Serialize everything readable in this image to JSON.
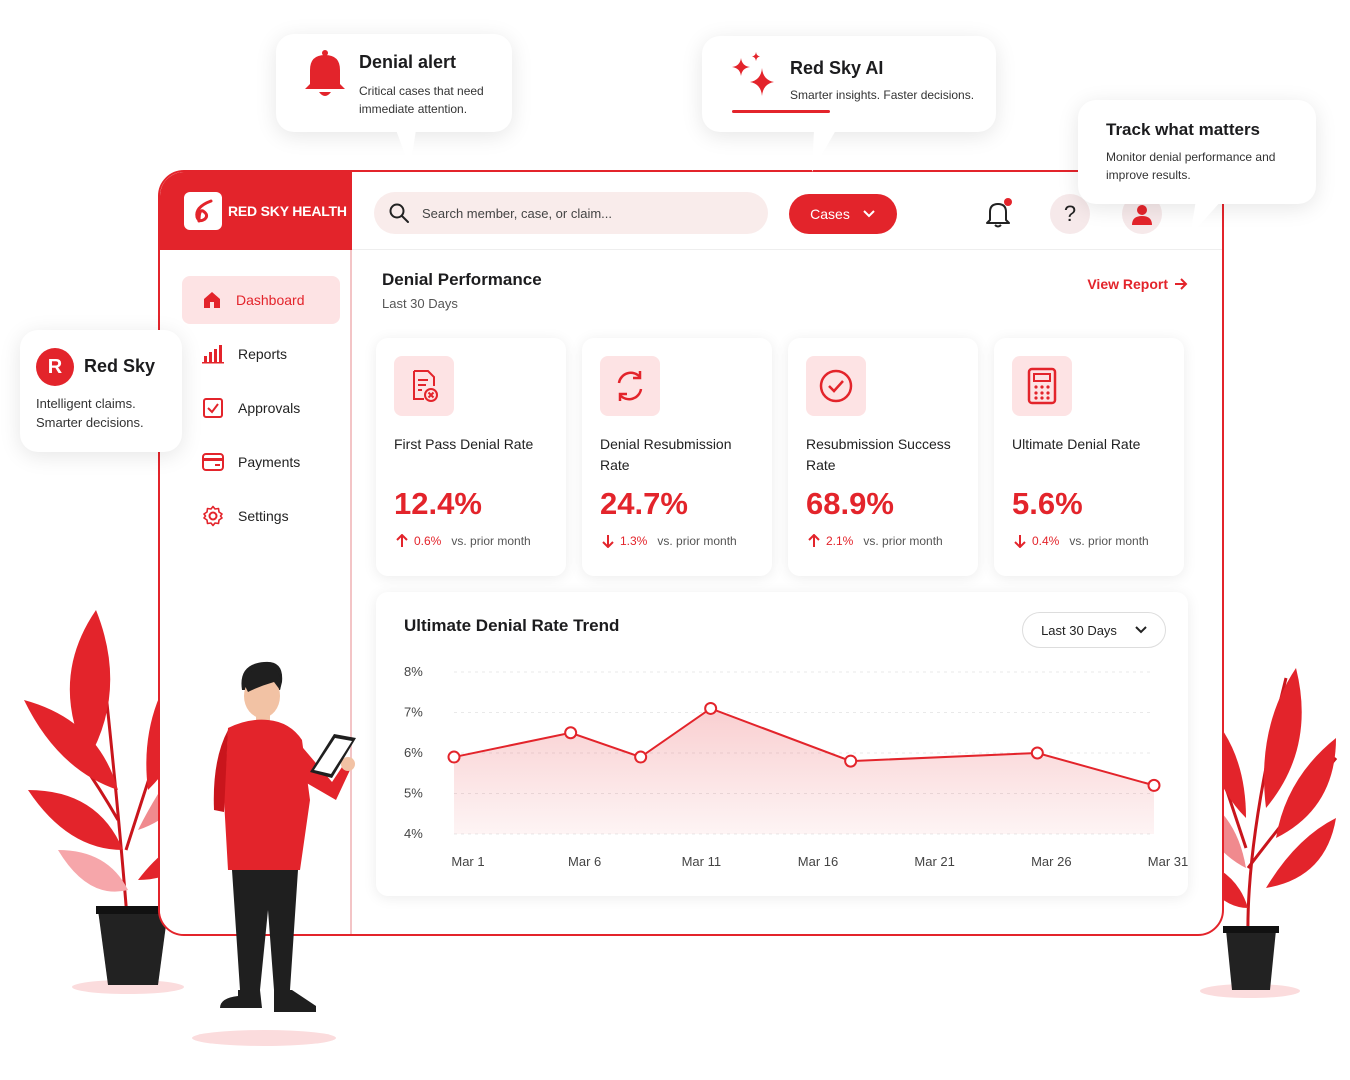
{
  "brand": {
    "name": "RED SKY HEALTH",
    "accent": "#e3242b"
  },
  "search": {
    "placeholder": "Search member, case, or claim..."
  },
  "header": {
    "cases_label": "Cases"
  },
  "sidebar": {
    "items": [
      {
        "label": "Dashboard",
        "icon": "home-icon",
        "active": true
      },
      {
        "label": "Reports",
        "icon": "bar-chart-icon"
      },
      {
        "label": "Approvals",
        "icon": "checkbox-icon"
      },
      {
        "label": "Payments",
        "icon": "credit-card-icon"
      },
      {
        "label": "Settings",
        "icon": "gear-icon"
      }
    ]
  },
  "performance": {
    "title": "Denial Performance",
    "subtitle": "Last 30 Days",
    "view_report": "View Report"
  },
  "cards": [
    {
      "label": "First Pass Denial Rate",
      "value": "12.4%",
      "delta": "0.6%",
      "direction": "up",
      "compare": "vs. prior month",
      "icon": "document-x-icon"
    },
    {
      "label": "Denial Resubmission Rate",
      "value": "24.7%",
      "delta": "1.3%",
      "direction": "down",
      "compare": "vs. prior month",
      "icon": "refresh-icon"
    },
    {
      "label": "Resubmission Success Rate",
      "value": "68.9%",
      "delta": "2.1%",
      "direction": "up",
      "compare": "vs. prior month",
      "icon": "check-circle-icon"
    },
    {
      "label": "Ultimate Denial Rate",
      "value": "5.6%",
      "delta": "0.4%",
      "direction": "down",
      "compare": "vs. prior month",
      "icon": "calculator-icon"
    }
  ],
  "trend": {
    "title": "Ultimate Denial Rate Trend",
    "range_label": "Last 30 Days"
  },
  "chart_data": {
    "type": "area",
    "title": "Ultimate Denial Rate Trend",
    "x_ticks": [
      "Mar 1",
      "Mar 6",
      "Mar 11",
      "Mar 16",
      "Mar 21",
      "Mar 26",
      "Mar 31"
    ],
    "y_ticks": [
      "8%",
      "7%",
      "6%",
      "5%",
      "4%"
    ],
    "ylim": [
      4,
      8
    ],
    "x": [
      1,
      6,
      9,
      12,
      18,
      26,
      31
    ],
    "values": [
      5.9,
      6.5,
      5.9,
      7.1,
      5.8,
      6.0,
      5.2
    ],
    "color": "#e3242b",
    "grid": true
  },
  "bubbles": {
    "alert": {
      "title": "Denial alert",
      "text": "Critical cases that need immediate attention."
    },
    "ai": {
      "title": "Red Sky AI",
      "text": "Smarter insights. Faster decisions."
    },
    "track": {
      "title": "Track what matters",
      "text": "Monitor denial performance and improve results."
    },
    "redsky": {
      "title": "Red Sky",
      "badge": "R",
      "text": "Intelligent claims. Smarter decisions."
    }
  }
}
